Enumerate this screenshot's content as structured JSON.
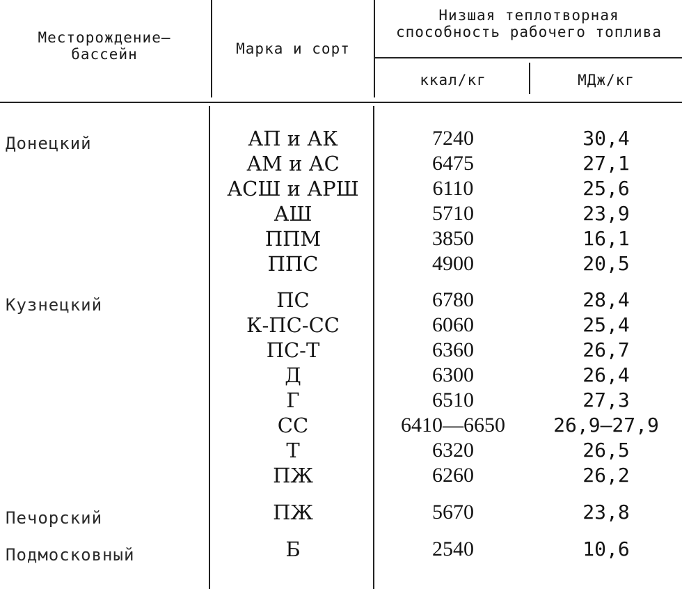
{
  "header": {
    "deposit": "Месторождение—бассейн",
    "deposit_line1": "Месторождение—",
    "deposit_line2": "бассейн",
    "grade": "Марка и сорт",
    "calorific_line1": "Низшая теплотворная",
    "calorific_line2": "способность рабочего топлива",
    "unit_kcal": "ккал/кг",
    "unit_mj": "МДж/кг"
  },
  "fields": [
    {
      "name": "Донецкий",
      "rows": [
        {
          "grade": "АП и АК",
          "kcal": "7240",
          "mj": "30,4"
        },
        {
          "grade": "АМ и АС",
          "kcal": "6475",
          "mj": "27,1"
        },
        {
          "grade": "АСШ и АРШ",
          "kcal": "6110",
          "mj": "25,6"
        },
        {
          "grade": "АШ",
          "kcal": "5710",
          "mj": "23,9"
        },
        {
          "grade": "ППМ",
          "kcal": "3850",
          "mj": "16,1"
        },
        {
          "grade": "ППС",
          "kcal": "4900",
          "mj": "20,5"
        }
      ]
    },
    {
      "name": "Кузнецкий",
      "rows": [
        {
          "grade": "ПС",
          "kcal": "6780",
          "mj": "28,4"
        },
        {
          "grade": "К-ПС-СС",
          "kcal": "6060",
          "mj": "25,4"
        },
        {
          "grade": "ПС-Т",
          "kcal": "6360",
          "mj": "26,7"
        },
        {
          "grade": "Д",
          "kcal": "6300",
          "mj": "26,4"
        },
        {
          "grade": "Г",
          "kcal": "6510",
          "mj": "27,3"
        },
        {
          "grade": "СС",
          "kcal": "6410—6650",
          "mj": "26,9—27,9"
        },
        {
          "grade": "Т",
          "kcal": "6320",
          "mj": "26,5"
        },
        {
          "grade": "ПЖ",
          "kcal": "6260",
          "mj": "26,2"
        }
      ]
    },
    {
      "name": "Печорский",
      "rows": [
        {
          "grade": "ПЖ",
          "kcal": "5670",
          "mj": "23,8"
        }
      ]
    },
    {
      "name": "Подмосковный",
      "rows": [
        {
          "grade": "Б",
          "kcal": "2540",
          "mj": "10,6"
        }
      ]
    }
  ]
}
